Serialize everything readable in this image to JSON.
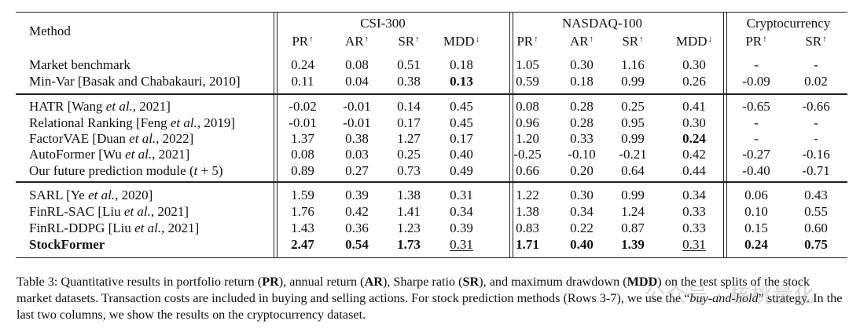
{
  "header": {
    "method": "Method",
    "groups": [
      {
        "name": "CSI-300",
        "cols": [
          "PR",
          "AR",
          "SR",
          "MDD"
        ]
      },
      {
        "name": "NASDAQ-100",
        "cols": [
          "PR",
          "AR",
          "SR",
          "MDD"
        ]
      },
      {
        "name": "Cryptocurrency",
        "cols": [
          "PR",
          "SR"
        ]
      }
    ],
    "arrows": {
      "PR": "↑",
      "AR": "↑",
      "SR": "↑",
      "MDD": "↓"
    }
  },
  "sections": [
    [
      {
        "method": [
          {
            "t": "Market benchmark"
          }
        ],
        "vals": [
          "0.24",
          "0.08",
          "0.51",
          "0.18",
          "1.05",
          "0.30",
          "1.16",
          "0.30",
          "-",
          "-"
        ]
      },
      {
        "method": [
          {
            "t": "Min-Var [Basak and Chabakauri, 2010]"
          }
        ],
        "vals": [
          "0.11",
          "0.04",
          "0.38",
          "0.13",
          "0.59",
          "0.18",
          "0.99",
          "0.26",
          "-0.09",
          "0.02"
        ],
        "bold": [
          3
        ]
      }
    ],
    [
      {
        "method": [
          {
            "t": "HATR [Wang "
          },
          {
            "t": "et al.",
            "i": true
          },
          {
            "t": ", 2021]"
          }
        ],
        "vals": [
          "-0.02",
          "-0.01",
          "0.14",
          "0.45",
          "0.08",
          "0.28",
          "0.25",
          "0.41",
          "-0.65",
          "-0.66"
        ]
      },
      {
        "method": [
          {
            "t": "Relational Ranking [Feng "
          },
          {
            "t": "et al.",
            "i": true
          },
          {
            "t": ", 2019]"
          }
        ],
        "vals": [
          "-0.01",
          "-0.01",
          "0.17",
          "0.45",
          "0.96",
          "0.28",
          "0.95",
          "0.30",
          "-",
          "-"
        ]
      },
      {
        "method": [
          {
            "t": "FactorVAE [Duan "
          },
          {
            "t": "et al.",
            "i": true
          },
          {
            "t": ", 2022]"
          }
        ],
        "vals": [
          "1.37",
          "0.38",
          "1.27",
          "0.17",
          "1.20",
          "0.33",
          "0.99",
          "0.24",
          "-",
          "-"
        ],
        "bold": [
          7
        ]
      },
      {
        "method": [
          {
            "t": "AutoFormer [Wu "
          },
          {
            "t": "et al.",
            "i": true
          },
          {
            "t": ", 2021]"
          }
        ],
        "vals": [
          "0.08",
          "0.03",
          "0.25",
          "0.40",
          "-0.25",
          "-0.10",
          "-0.21",
          "0.42",
          "-0.27",
          "-0.16"
        ]
      },
      {
        "method": [
          {
            "t": "Our future prediction module ("
          },
          {
            "t": "t",
            "i": true
          },
          {
            "t": " + 5)"
          }
        ],
        "vals": [
          "0.89",
          "0.27",
          "0.73",
          "0.49",
          "0.66",
          "0.20",
          "0.64",
          "0.44",
          "-0.40",
          "-0.71"
        ]
      }
    ],
    [
      {
        "method": [
          {
            "t": "SARL [Ye "
          },
          {
            "t": "et al.",
            "i": true
          },
          {
            "t": ", 2020]"
          }
        ],
        "vals": [
          "1.59",
          "0.39",
          "1.38",
          "0.31",
          "1.22",
          "0.30",
          "0.99",
          "0.34",
          "0.06",
          "0.43"
        ]
      },
      {
        "method": [
          {
            "t": "FinRL-SAC [Liu "
          },
          {
            "t": "et al.",
            "i": true
          },
          {
            "t": ", 2021]"
          }
        ],
        "vals": [
          "1.76",
          "0.42",
          "1.41",
          "0.34",
          "1.38",
          "0.34",
          "1.24",
          "0.33",
          "0.10",
          "0.55"
        ]
      },
      {
        "method": [
          {
            "t": "FinRL-DDPG [Liu "
          },
          {
            "t": "et al.",
            "i": true
          },
          {
            "t": ", 2021]"
          }
        ],
        "vals": [
          "1.43",
          "0.36",
          "1.23",
          "0.39",
          "0.83",
          "0.22",
          "0.87",
          "0.33",
          "0.15",
          "0.60"
        ]
      },
      {
        "method": [
          {
            "t": "StockFormer",
            "b": true
          }
        ],
        "vals": [
          "2.47",
          "0.54",
          "1.73",
          "0.31",
          "1.71",
          "0.40",
          "1.39",
          "0.31",
          "0.24",
          "0.75"
        ],
        "bold": [
          0,
          1,
          2,
          4,
          5,
          6,
          8,
          9
        ],
        "underline": [
          3,
          7
        ]
      }
    ]
  ],
  "caption": [
    {
      "t": "Table 3: Quantitative results in portfolio return ("
    },
    {
      "t": "PR",
      "b": true
    },
    {
      "t": "), annual return ("
    },
    {
      "t": "AR",
      "b": true
    },
    {
      "t": "), Sharpe ratio ("
    },
    {
      "t": "SR",
      "b": true
    },
    {
      "t": "), and maximum drawdown ("
    },
    {
      "t": "MDD",
      "b": true
    },
    {
      "t": ") on the test splits of the stock market datasets. Transaction costs are included in buying and selling actions. For stock prediction methods (Rows 3-7), we use the “"
    },
    {
      "t": "buy-and-hold",
      "i": true
    },
    {
      "t": "” strategy. In the last two columns, we show the results on the cryptocurrency dataset."
    }
  ],
  "watermark": "公众号 · 核桃量化"
}
